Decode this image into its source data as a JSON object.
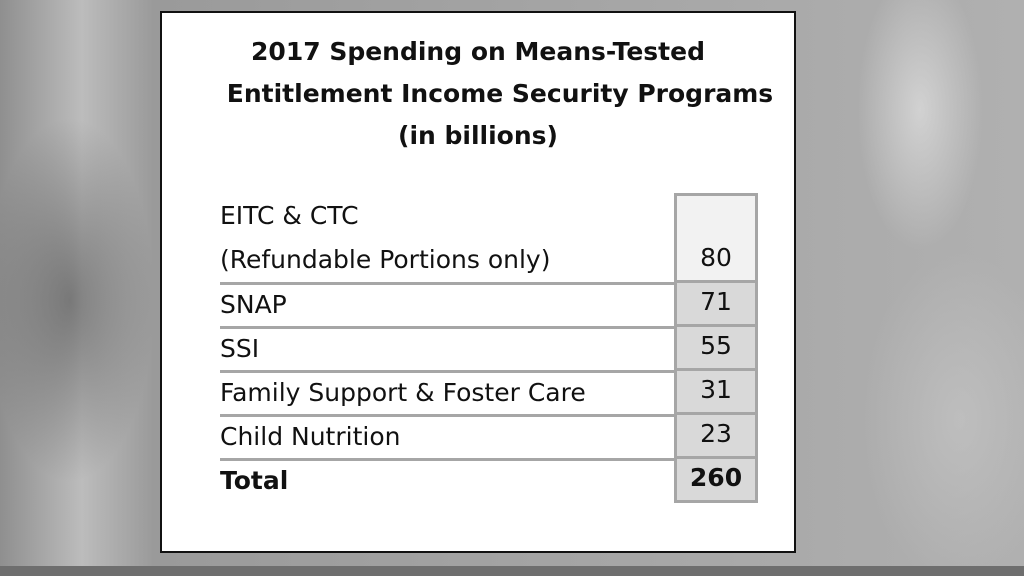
{
  "chart_data": {
    "type": "table",
    "title_lines": [
      "2017 Spending on Means-Tested",
      "Entitlement Income Security Programs",
      "(in billions)"
    ],
    "rows": [
      {
        "label_lines": [
          "EITC & CTC",
          "(Refundable Portions only)"
        ],
        "value": "80"
      },
      {
        "label_lines": [
          "SNAP"
        ],
        "value": "71"
      },
      {
        "label_lines": [
          "SSI"
        ],
        "value": "55"
      },
      {
        "label_lines": [
          "Family Support & Foster Care"
        ],
        "value": "31"
      },
      {
        "label_lines": [
          "Child Nutrition"
        ],
        "value": "23"
      }
    ],
    "total": {
      "label": "Total",
      "value": "260"
    }
  },
  "colors": {
    "card_background": "#ffffff",
    "card_border": "#111111",
    "value_cell_fill": "#d9d9d9",
    "grid_line": "#a6a6a6",
    "slide_background": "#a9a9a9"
  }
}
